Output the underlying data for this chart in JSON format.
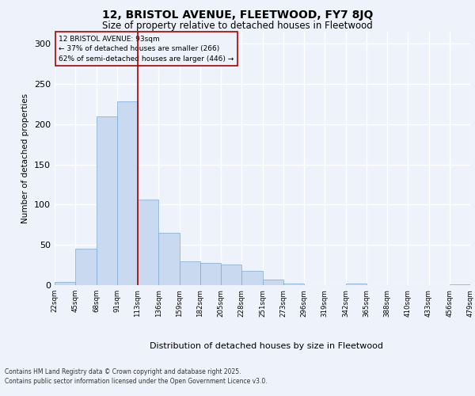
{
  "title1": "12, BRISTOL AVENUE, FLEETWOOD, FY7 8JQ",
  "title2": "Size of property relative to detached houses in Fleetwood",
  "xlabel": "Distribution of detached houses by size in Fleetwood",
  "ylabel": "Number of detached properties",
  "footer1": "Contains HM Land Registry data © Crown copyright and database right 2025.",
  "footer2": "Contains public sector information licensed under the Open Government Licence v3.0.",
  "annotation_title": "12 BRISTOL AVENUE: 93sqm",
  "annotation_line1": "← 37% of detached houses are smaller (266)",
  "annotation_line2": "62% of semi-detached houses are larger (446) →",
  "bar_values": [
    4,
    45,
    210,
    228,
    106,
    65,
    30,
    28,
    26,
    18,
    7,
    2,
    0,
    0,
    2,
    0,
    0,
    0,
    0,
    1
  ],
  "bin_labels": [
    "22sqm",
    "45sqm",
    "68sqm",
    "91sqm",
    "113sqm",
    "136sqm",
    "159sqm",
    "182sqm",
    "205sqm",
    "228sqm",
    "251sqm",
    "273sqm",
    "296sqm",
    "319sqm",
    "342sqm",
    "365sqm",
    "388sqm",
    "410sqm",
    "433sqm",
    "456sqm",
    "479sqm"
  ],
  "bar_color": "#c9d9f0",
  "bar_edge_color": "#7aaad4",
  "bg_color": "#eef2fb",
  "grid_color": "#ffffff",
  "vline_color": "#aa0000",
  "vline_x_bar_index": 3,
  "annotation_box_color": "#aa0000",
  "ylim": [
    0,
    315
  ],
  "yticks": [
    0,
    50,
    100,
    150,
    200,
    250,
    300
  ]
}
